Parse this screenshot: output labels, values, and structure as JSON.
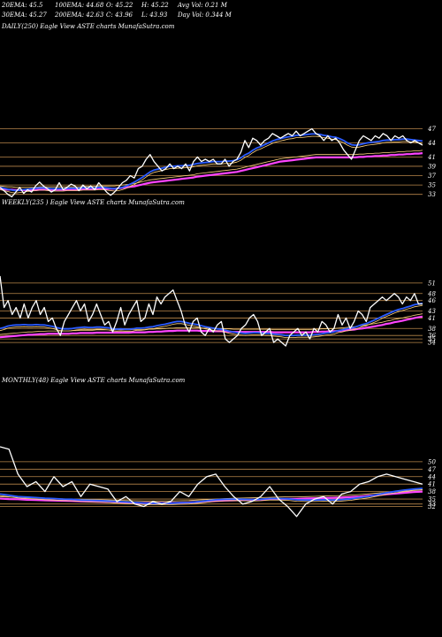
{
  "header": {
    "ema20": "20EMA: 45.5",
    "ema100": "100EMA: 44.68",
    "open": "O: 45.22",
    "high": "H: 45.22",
    "avgvol": "Avg Vol: 0.21 M",
    "ema30": "30EMA: 45.27",
    "ema200": "200EMA: 42.63",
    "close": "C: 43.96",
    "low": "L: 43.93",
    "dayvol": "Day Vol: 0.344  M"
  },
  "panels": [
    {
      "title": "DAILY(250) Eagle   View  ASTE charts MunafaSutra.com"
    },
    {
      "title": "WEEKLY(235          ) Eagle   View  ASTE charts MunafaSutra.com"
    },
    {
      "title": "MONTHLY(48) Eagle   View  ASTE charts MunafaSutra.com"
    }
  ],
  "colors": {
    "price": "#ffffff",
    "ema_short": "#2a5bff",
    "ema_long": "#ff44ff",
    "ema_mid": "#ffd27f",
    "level": "#b8864a"
  },
  "chart_data": [
    {
      "type": "line",
      "name": "daily",
      "ylim": [
        32,
        49
      ],
      "levels": [
        47,
        44,
        41,
        39,
        37,
        35,
        33
      ],
      "price": [
        34.5,
        33.8,
        33,
        32.5,
        33.5,
        34.5,
        33.2,
        34,
        33.5,
        34.8,
        35.6,
        34.8,
        34.2,
        33.5,
        34,
        35.5,
        34,
        34.5,
        35.2,
        34.8,
        33.8,
        35,
        34.2,
        34.8,
        34,
        35.5,
        34.5,
        33.5,
        32.8,
        33.5,
        34.5,
        35.5,
        36,
        37,
        36.5,
        38.5,
        39,
        40.5,
        41.5,
        40,
        39,
        38,
        38.5,
        39.5,
        38.5,
        39,
        38.5,
        39.5,
        38,
        40,
        41,
        40,
        40.5,
        40,
        40.5,
        39.5,
        39.5,
        40.5,
        39,
        40,
        40.5,
        42,
        44.5,
        43,
        45,
        44.5,
        43.5,
        44.5,
        45,
        46,
        45.5,
        45,
        45.5,
        46,
        45.5,
        46.5,
        45.5,
        46,
        46.5,
        47,
        46,
        45.5,
        44.5,
        45.5,
        44.5,
        45,
        44,
        42.5,
        41.5,
        40.5,
        42.5,
        44.5,
        45.5,
        45,
        44.5,
        45.5,
        45,
        46,
        45.5,
        44.5,
        45.5,
        45,
        45.5,
        44.5,
        44,
        44.5,
        44,
        43.5
      ],
      "ema20": [
        34.5,
        34.3,
        34.1,
        33.9,
        33.8,
        33.9,
        34,
        34.1,
        34.2,
        34.3,
        34.4,
        34.4,
        34.3,
        34.2,
        34.2,
        34.2,
        34.2,
        34.3,
        34.3,
        34.3,
        34.3,
        34.4,
        34.4,
        34.4,
        34.4,
        34.5,
        34.5,
        34.4,
        34.3,
        34.2,
        34.3,
        34.5,
        34.8,
        35.2,
        35.6,
        36.1,
        36.6,
        37.2,
        37.8,
        38.2,
        38.4,
        38.6,
        38.8,
        39,
        39,
        39.1,
        39.1,
        39.2,
        39.2,
        39.4,
        39.6,
        39.7,
        39.8,
        39.9,
        40,
        40,
        40,
        40.1,
        40.1,
        40.2,
        40.4,
        40.8,
        41.4,
        41.8,
        42.4,
        42.9,
        43.2,
        43.6,
        44,
        44.4,
        44.7,
        44.9,
        45.1,
        45.3,
        45.4,
        45.6,
        45.6,
        45.7,
        45.8,
        45.9,
        45.9,
        45.8,
        45.6,
        45.5,
        45.3,
        45.2,
        44.9,
        44.5,
        44,
        43.6,
        43.5,
        43.6,
        43.8,
        44,
        44.1,
        44.2,
        44.3,
        44.5,
        44.6,
        44.6,
        44.7,
        44.7,
        44.8,
        44.8,
        44.7,
        44.6,
        44.5,
        44.4
      ],
      "ema200": [
        34.2,
        34.1,
        34,
        34,
        33.9,
        33.9,
        33.9,
        33.9,
        33.9,
        33.9,
        34,
        34,
        34,
        34,
        34,
        34,
        34,
        34,
        34,
        34,
        34,
        34.1,
        34.1,
        34.1,
        34.1,
        34.2,
        34.2,
        34.2,
        34.2,
        34.2,
        34.3,
        34.4,
        34.5,
        34.6,
        34.7,
        34.9,
        35.1,
        35.3,
        35.5,
        35.6,
        35.7,
        35.8,
        35.9,
        36,
        36.1,
        36.2,
        36.3,
        36.4,
        36.5,
        36.6,
        36.8,
        36.9,
        37,
        37.1,
        37.2,
        37.3,
        37.4,
        37.5,
        37.6,
        37.7,
        37.8,
        38,
        38.2,
        38.4,
        38.6,
        38.8,
        39,
        39.2,
        39.4,
        39.6,
        39.8,
        40,
        40.1,
        40.2,
        40.3,
        40.4,
        40.5,
        40.6,
        40.7,
        40.8,
        40.9,
        40.9,
        40.9,
        40.9,
        40.9,
        40.9,
        40.9,
        40.9,
        40.9,
        40.9,
        40.9,
        41,
        41,
        41.1,
        41.1,
        41.2,
        41.2,
        41.3,
        41.3,
        41.4,
        41.4,
        41.5,
        41.5,
        41.6,
        41.6,
        41.7,
        41.7,
        41.8
      ]
    },
    {
      "type": "line",
      "name": "weekly",
      "ylim": [
        32,
        53
      ],
      "levels": [
        51,
        48,
        46,
        43,
        41,
        38,
        36,
        35,
        34
      ],
      "price": [
        53,
        44,
        46,
        42,
        44,
        41,
        45,
        41,
        44,
        46,
        42,
        44,
        40,
        41,
        38,
        36,
        40,
        42,
        44,
        46,
        43,
        45,
        40,
        42,
        45,
        42,
        39,
        40,
        37,
        40,
        44,
        39,
        42,
        44,
        46,
        40,
        41,
        45,
        42,
        47,
        45,
        47,
        48,
        49,
        46,
        43,
        39,
        37,
        40,
        41,
        37,
        36,
        38,
        37,
        39,
        40,
        35,
        34,
        35,
        36,
        38,
        39,
        41,
        42,
        40,
        36,
        37,
        38,
        34,
        35,
        34,
        33,
        36,
        37,
        38,
        36,
        37,
        35,
        38,
        37,
        40,
        39,
        37,
        38,
        42,
        39,
        41,
        38,
        40,
        43,
        42,
        40,
        44,
        45,
        46,
        47,
        46,
        47,
        48,
        47,
        45,
        47,
        46,
        48,
        45,
        45
      ],
      "ema_short": [
        38,
        38.3,
        38.7,
        38.9,
        39,
        39,
        39.1,
        39,
        39,
        39.1,
        39,
        39,
        38.8,
        38.6,
        38.3,
        38,
        37.9,
        37.9,
        38,
        38.2,
        38.3,
        38.4,
        38.3,
        38.3,
        38.4,
        38.4,
        38.3,
        38.2,
        37.9,
        37.8,
        37.9,
        37.8,
        37.8,
        37.9,
        38.1,
        38.1,
        38.2,
        38.4,
        38.5,
        38.8,
        39,
        39.2,
        39.5,
        39.8,
        40,
        40,
        39.8,
        39.5,
        39.3,
        39.1,
        38.8,
        38.5,
        38.3,
        38.1,
        37.9,
        37.8,
        37.5,
        37.2,
        37,
        36.8,
        36.7,
        36.6,
        36.7,
        36.8,
        36.8,
        36.7,
        36.6,
        36.6,
        36.4,
        36.3,
        36.2,
        36,
        36,
        36,
        36.1,
        36.1,
        36.1,
        36.1,
        36.2,
        36.3,
        36.5,
        36.7,
        36.8,
        37,
        37.4,
        37.6,
        37.9,
        38.1,
        38.3,
        38.7,
        39.1,
        39.4,
        39.9,
        40.4,
        40.9,
        41.5,
        42,
        42.5,
        43,
        43.4,
        43.7,
        44.1,
        44.4,
        44.8,
        45,
        45.2
      ],
      "ema_long": [
        35.5,
        35.6,
        35.7,
        35.8,
        35.9,
        36,
        36.1,
        36.2,
        36.2,
        36.3,
        36.4,
        36.4,
        36.5,
        36.5,
        36.5,
        36.5,
        36.5,
        36.5,
        36.6,
        36.6,
        36.7,
        36.7,
        36.7,
        36.7,
        36.8,
        36.8,
        36.8,
        36.8,
        36.8,
        36.8,
        36.8,
        36.8,
        36.8,
        36.9,
        36.9,
        36.9,
        36.9,
        37,
        37,
        37.1,
        37.1,
        37.2,
        37.3,
        37.3,
        37.4,
        37.4,
        37.4,
        37.4,
        37.4,
        37.4,
        37.3,
        37.3,
        37.3,
        37.2,
        37.2,
        37.2,
        37.1,
        37.1,
        37,
        37,
        37,
        37,
        37,
        37,
        37,
        37,
        37,
        37,
        36.9,
        36.9,
        36.9,
        36.9,
        36.9,
        36.9,
        36.9,
        36.9,
        36.9,
        36.9,
        37,
        37,
        37.1,
        37.1,
        37.2,
        37.2,
        37.3,
        37.4,
        37.5,
        37.6,
        37.7,
        37.9,
        38,
        38.2,
        38.4,
        38.6,
        38.8,
        39,
        39.3,
        39.5,
        39.8,
        40,
        40.2,
        40.5,
        40.7,
        41,
        41.2,
        41.4
      ]
    },
    {
      "type": "line",
      "name": "monthly",
      "ylim": [
        24,
        56
      ],
      "levels": [
        50,
        47,
        44,
        41,
        38,
        35,
        33,
        32
      ],
      "price": [
        56,
        55,
        45,
        40,
        42,
        38,
        44,
        40,
        42,
        36,
        41,
        40,
        39,
        34,
        36,
        33,
        32,
        34,
        33,
        34,
        38,
        36,
        41,
        44,
        45,
        40,
        36,
        33,
        34,
        36,
        40,
        35,
        32,
        28,
        33,
        35,
        36,
        33,
        37,
        38,
        41,
        42,
        44,
        45,
        44,
        43,
        42,
        41
      ],
      "ema_short": [
        37,
        36.5,
        36,
        35.8,
        35.6,
        35.3,
        35.2,
        35,
        34.9,
        34.6,
        34.5,
        34.4,
        34.2,
        34,
        33.8,
        33.6,
        33.4,
        33.3,
        33.3,
        33.3,
        33.5,
        33.6,
        33.9,
        34.3,
        34.7,
        34.9,
        35,
        34.9,
        34.8,
        34.9,
        35.2,
        35.2,
        35.1,
        34.7,
        34.6,
        34.6,
        34.7,
        34.6,
        34.8,
        35.1,
        35.6,
        36.1,
        36.8,
        37.5,
        38.1,
        38.6,
        39,
        39.3
      ],
      "ema_long": [
        35.2,
        35,
        34.9,
        34.7,
        34.6,
        34.5,
        34.4,
        34.3,
        34.2,
        34.1,
        34,
        33.9,
        33.8,
        33.7,
        33.6,
        33.5,
        33.4,
        33.4,
        33.4,
        33.4,
        33.5,
        33.6,
        33.8,
        34,
        34.2,
        34.4,
        34.5,
        34.6,
        34.7,
        34.8,
        34.9,
        35,
        35.1,
        35.1,
        35.2,
        35.3,
        35.4,
        35.5,
        35.6,
        35.8,
        36,
        36.3,
        36.6,
        36.9,
        37.2,
        37.5,
        37.8,
        38
      ]
    }
  ]
}
